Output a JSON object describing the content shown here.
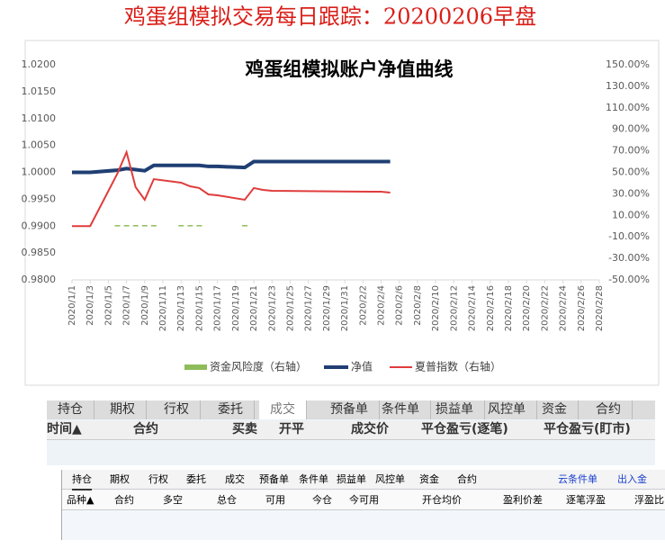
{
  "header": {
    "title": "鸡蛋组模拟交易每日跟踪：20200206早盘"
  },
  "chart_data": {
    "type": "line",
    "title": "鸡蛋组模拟账户净值曲线",
    "x": [
      "2020/1/1",
      "2020/1/3",
      "2020/1/6",
      "2020/1/7",
      "2020/1/8",
      "2020/1/9",
      "2020/1/10",
      "2020/1/13",
      "2020/1/14",
      "2020/1/15",
      "2020/1/16",
      "2020/1/17",
      "2020/1/20",
      "2020/1/21",
      "2020/1/22",
      "2020/1/23",
      "2020/2/3",
      "2020/2/4",
      "2020/2/5"
    ],
    "xlim": [
      "2020/1/1",
      "2020/2/28"
    ],
    "xticks": [
      "2020/1/1",
      "2020/1/3",
      "2020/1/5",
      "2020/1/7",
      "2020/1/9",
      "2020/1/11",
      "2020/1/13",
      "2020/1/15",
      "2020/1/17",
      "2020/1/19",
      "2020/1/21",
      "2020/1/23",
      "2020/1/25",
      "2020/1/27",
      "2020/1/29",
      "2020/1/31",
      "2020/2/2",
      "2020/2/4",
      "2020/2/6",
      "2020/2/8",
      "2020/2/10",
      "2020/2/12",
      "2020/2/14",
      "2020/2/16",
      "2020/2/18",
      "2020/2/20",
      "2020/2/22",
      "2020/2/24",
      "2020/2/26",
      "2020/2/28"
    ],
    "ylim": [
      0.98,
      1.02
    ],
    "yticks": [
      {
        "value": 0.98,
        "label": "0.9800"
      },
      {
        "value": 0.985,
        "label": "0.9850"
      },
      {
        "value": 0.99,
        "label": "0.9900"
      },
      {
        "value": 0.995,
        "label": "0.9950"
      },
      {
        "value": 1,
        "label": "1.0000"
      },
      {
        "value": 1.005,
        "label": "1.0050"
      },
      {
        "value": 1.01,
        "label": "1.0100"
      },
      {
        "value": 1.015,
        "label": "1.0150"
      },
      {
        "value": 1.02,
        "label": "1.0200"
      }
    ],
    "y2lim": [
      -50,
      150
    ],
    "y2ticks": [
      {
        "value": -50,
        "label": "-50.00%"
      },
      {
        "value": -30,
        "label": "-30.00%"
      },
      {
        "value": -10,
        "label": "-10.00%"
      },
      {
        "value": 10,
        "label": "10.00%"
      },
      {
        "value": 30,
        "label": "30.00%"
      },
      {
        "value": 50,
        "label": "50.00%"
      },
      {
        "value": 70,
        "label": "70.00%"
      },
      {
        "value": 90,
        "label": "90.00%"
      },
      {
        "value": 110,
        "label": "110.00%"
      },
      {
        "value": 130,
        "label": "130.00%"
      },
      {
        "value": 150,
        "label": "150.00%"
      }
    ],
    "series": [
      {
        "name": "资金风险度（右轴）",
        "type": "bar",
        "axis": "y2",
        "color": "#8fbc5a",
        "values": [
          null,
          null,
          1,
          1,
          1,
          1,
          1,
          1,
          1,
          1,
          null,
          null,
          1,
          null,
          null,
          null,
          null,
          null,
          null
        ]
      },
      {
        "name": "净值",
        "type": "line",
        "color": "#1f3f73",
        "values": [
          1,
          1,
          1.0004,
          1.0007,
          1.0005,
          1.0003,
          1.0013,
          1.0013,
          1.0013,
          1.0013,
          1.0011,
          1.0011,
          1.0009,
          1.002,
          1.002,
          1.002,
          1.002,
          1.002,
          1.002
        ]
      },
      {
        "name": "夏普指数（右轴）",
        "type": "line",
        "axis": "y2",
        "color": "#e03c3c",
        "values": [
          0,
          0,
          49,
          68.8,
          36.2,
          24.5,
          43.7,
          40.4,
          37,
          35.4,
          29.5,
          28.7,
          24.5,
          35.4,
          33.7,
          32.8,
          32,
          32,
          31.2
        ]
      }
    ]
  },
  "panel1": {
    "tabs": [
      "持仓",
      "期权",
      "行权",
      "委托",
      "成交",
      "预备单",
      "条件单",
      "损益单",
      "风控单",
      "资金",
      "合约"
    ],
    "columns": [
      "时间▲",
      "合约",
      "买卖",
      "开平",
      "成交价",
      "平仓盈亏(逐笔)",
      "平仓盈亏(盯市)"
    ]
  },
  "panel2": {
    "tabs": [
      "持仓",
      "期权",
      "行权",
      "委托",
      "成交",
      "预备单",
      "条件单",
      "损益单",
      "风控单",
      "资金",
      "合约"
    ],
    "links": [
      "云条件单",
      "出入金"
    ],
    "columns": [
      "品种▲",
      "合约",
      "多空",
      "总仓",
      "可用",
      "今仓",
      "今可用",
      "开仓均价",
      "盈利价差",
      "逐笔浮盈",
      "浮盈比"
    ]
  }
}
